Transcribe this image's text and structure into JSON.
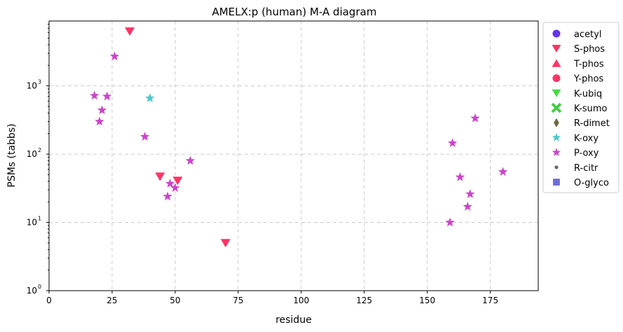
{
  "chart_data": {
    "type": "scatter",
    "title": "AMELX:p (human) M-A diagram",
    "xlabel": "residue",
    "ylabel": "PSMs (tabbs)",
    "xlim": [
      0,
      194
    ],
    "ylim_log10": [
      0,
      3.95
    ],
    "yscale": "log",
    "grid": true,
    "legend_placement": "outside-right",
    "x_ticks": [
      0,
      25,
      50,
      75,
      100,
      125,
      150,
      175
    ],
    "y_ticks": [
      {
        "value": 1,
        "label": "10",
        "exp": "0"
      },
      {
        "value": 10,
        "label": "10",
        "exp": "1"
      },
      {
        "value": 100,
        "label": "10",
        "exp": "2"
      },
      {
        "value": 1000,
        "label": "10",
        "exp": "3"
      }
    ],
    "legend": [
      {
        "name": "acetyl",
        "marker": "circle",
        "color": "#6633ee"
      },
      {
        "name": "S-phos",
        "marker": "triangle-down",
        "color": "#ff3366"
      },
      {
        "name": "T-phos",
        "marker": "triangle-up",
        "color": "#ff3366"
      },
      {
        "name": "Y-phos",
        "marker": "circle",
        "color": "#ff3366"
      },
      {
        "name": "K-ubiq",
        "marker": "triangle-down",
        "color": "#44dd44"
      },
      {
        "name": "K-sumo",
        "marker": "x",
        "color": "#44cc44"
      },
      {
        "name": "R-dimet",
        "marker": "diamond",
        "color": "#6b6b45"
      },
      {
        "name": "K-oxy",
        "marker": "star",
        "color": "#44cccc"
      },
      {
        "name": "P-oxy",
        "marker": "star",
        "color": "#cc44cc"
      },
      {
        "name": "R-citr",
        "marker": "dot",
        "color": "#666666"
      },
      {
        "name": "O-glyco",
        "marker": "square",
        "color": "#6b6bdd"
      }
    ],
    "series": [
      {
        "name": "S-phos",
        "marker": "triangle-down",
        "color": "#ff3366",
        "points": [
          [
            32,
            6300
          ],
          [
            44,
            47
          ],
          [
            51,
            41
          ],
          [
            70,
            5
          ]
        ]
      },
      {
        "name": "K-oxy",
        "marker": "star",
        "color": "#44cccc",
        "points": [
          [
            40,
            660
          ]
        ]
      },
      {
        "name": "P-oxy",
        "marker": "star",
        "color": "#cc44cc",
        "points": [
          [
            26,
            2700
          ],
          [
            18,
            720
          ],
          [
            23,
            700
          ],
          [
            21,
            440
          ],
          [
            20,
            300
          ],
          [
            38,
            180
          ],
          [
            56,
            80
          ],
          [
            48,
            37
          ],
          [
            50,
            32
          ],
          [
            47,
            24
          ],
          [
            160,
            145
          ],
          [
            169,
            335
          ],
          [
            163,
            46
          ],
          [
            180,
            55
          ],
          [
            167,
            26
          ],
          [
            166,
            17
          ],
          [
            159,
            10
          ]
        ]
      }
    ]
  }
}
